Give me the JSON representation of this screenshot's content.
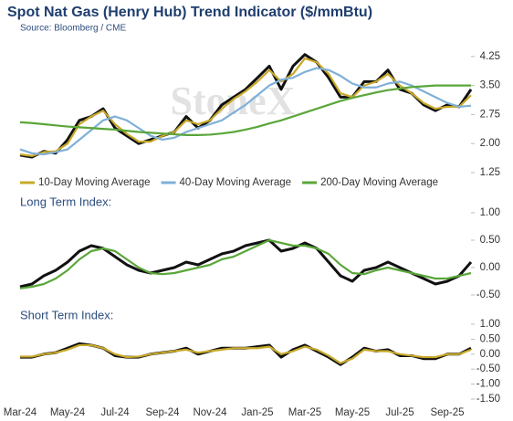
{
  "chart_data": [
    {
      "type": "line",
      "title": "Spot Nat Gas (Henry Hub) Trend Indicator ($/mmBtu)",
      "subtitle": "Source: Bloomberg / CME",
      "watermark": "StoneX",
      "ylim": [
        1.25,
        4.6
      ],
      "yticks": [
        4.25,
        {
          "value": 3.5,
          "label": "3.50"
        },
        2.75,
        {
          "value": 2.0,
          "label": "2.00"
        },
        1.25
      ],
      "series": [
        {
          "color": "#111111",
          "values": [
            1.7,
            1.65,
            1.8,
            1.75,
            2.1,
            2.6,
            2.7,
            2.9,
            2.4,
            2.2,
            2.0,
            2.1,
            2.2,
            2.3,
            2.7,
            2.4,
            2.6,
            3.0,
            3.2,
            3.4,
            3.7,
            4.0,
            3.4,
            4.0,
            4.3,
            4.1,
            3.7,
            3.2,
            3.2,
            3.6,
            3.6,
            3.9,
            3.4,
            3.3,
            3.0,
            2.85,
            3.0,
            2.95,
            3.4
          ]
        },
        {
          "name": "10-Day Moving Average",
          "color": "#c8a92a",
          "values": [
            1.72,
            1.68,
            1.78,
            1.8,
            2.0,
            2.5,
            2.7,
            2.85,
            2.5,
            2.25,
            2.05,
            2.05,
            2.2,
            2.3,
            2.6,
            2.5,
            2.6,
            2.9,
            3.15,
            3.35,
            3.6,
            3.9,
            3.6,
            3.8,
            4.2,
            4.1,
            3.8,
            3.3,
            3.2,
            3.5,
            3.6,
            3.8,
            3.5,
            3.3,
            3.05,
            2.9,
            2.95,
            2.95,
            3.25
          ]
        },
        {
          "name": "40-Day Moving Average",
          "color": "#7fb0d8",
          "values": [
            1.85,
            1.75,
            1.72,
            1.78,
            1.85,
            2.1,
            2.35,
            2.6,
            2.7,
            2.6,
            2.4,
            2.2,
            2.1,
            2.15,
            2.3,
            2.4,
            2.5,
            2.6,
            2.8,
            3.0,
            3.25,
            3.5,
            3.65,
            3.7,
            3.85,
            3.95,
            3.9,
            3.75,
            3.55,
            3.45,
            3.45,
            3.55,
            3.6,
            3.5,
            3.35,
            3.2,
            3.05,
            2.95,
            2.98
          ]
        },
        {
          "name": "200-Day Moving Average",
          "color": "#5aa63a",
          "values": [
            2.55,
            2.53,
            2.5,
            2.47,
            2.44,
            2.42,
            2.4,
            2.38,
            2.36,
            2.33,
            2.3,
            2.28,
            2.26,
            2.24,
            2.22,
            2.22,
            2.23,
            2.26,
            2.3,
            2.36,
            2.43,
            2.52,
            2.6,
            2.7,
            2.8,
            2.9,
            3.0,
            3.1,
            3.18,
            3.25,
            3.32,
            3.38,
            3.42,
            3.46,
            3.48,
            3.5,
            3.5,
            3.5,
            3.5
          ]
        }
      ]
    },
    {
      "type": "line",
      "title": "Long Term Index:",
      "ylim": [
        -0.5,
        1.0
      ],
      "yticks": [
        {
          "value": 1.0,
          "label": "1.00"
        },
        {
          "value": 0.5,
          "label": "0.50"
        },
        {
          "value": 0.0,
          "label": "0.00"
        },
        {
          "value": -0.5,
          "label": "-0.50"
        }
      ],
      "series": [
        {
          "color": "#111111",
          "values": [
            -0.35,
            -0.3,
            -0.15,
            -0.05,
            0.1,
            0.3,
            0.4,
            0.35,
            0.2,
            0.05,
            -0.05,
            -0.1,
            -0.05,
            0.0,
            0.1,
            0.05,
            0.15,
            0.25,
            0.3,
            0.4,
            0.45,
            0.5,
            0.3,
            0.35,
            0.45,
            0.35,
            0.1,
            -0.15,
            -0.25,
            -0.05,
            0.0,
            0.1,
            0.0,
            -0.1,
            -0.2,
            -0.3,
            -0.25,
            -0.15,
            0.1
          ]
        },
        {
          "color": "#5aa63a",
          "values": [
            -0.38,
            -0.35,
            -0.3,
            -0.2,
            -0.05,
            0.15,
            0.3,
            0.35,
            0.3,
            0.15,
            0.0,
            -0.1,
            -0.12,
            -0.1,
            -0.05,
            0.0,
            0.05,
            0.15,
            0.2,
            0.3,
            0.4,
            0.5,
            0.45,
            0.4,
            0.4,
            0.35,
            0.25,
            0.05,
            -0.1,
            -0.12,
            -0.05,
            0.0,
            -0.05,
            -0.1,
            -0.15,
            -0.2,
            -0.2,
            -0.15,
            -0.1
          ]
        }
      ]
    },
    {
      "type": "line",
      "title": "Short Term Index:",
      "ylim": [
        -1.5,
        1.0
      ],
      "yticks": [
        {
          "value": 1.0,
          "label": "1.00"
        },
        {
          "value": 0.5,
          "label": "0.50"
        },
        {
          "value": 0.0,
          "label": "0.00"
        },
        {
          "value": -0.5,
          "label": "-0.50"
        },
        {
          "value": -1.0,
          "label": "-1.00"
        },
        {
          "value": -1.5,
          "label": "-1.50"
        }
      ],
      "categories": [
        "Mar-24",
        null,
        null,
        null,
        "May-24",
        null,
        null,
        null,
        "Jul-24",
        null,
        null,
        null,
        "Sep-24",
        null,
        null,
        null,
        "Nov-24",
        null,
        null,
        null,
        "Jan-25",
        null,
        null,
        null,
        "Mar-25",
        null,
        null,
        null,
        "May-25",
        null,
        null,
        null,
        "Jul-25",
        null,
        null,
        null,
        "Sep-25",
        null,
        null
      ],
      "series": [
        {
          "color": "#111111",
          "values": [
            -0.1,
            -0.1,
            0.0,
            0.05,
            0.2,
            0.35,
            0.3,
            0.2,
            -0.05,
            -0.1,
            -0.1,
            0.0,
            0.05,
            0.1,
            0.2,
            0.0,
            0.1,
            0.2,
            0.2,
            0.2,
            0.25,
            0.3,
            -0.1,
            0.15,
            0.3,
            0.1,
            -0.1,
            -0.35,
            -0.1,
            0.2,
            0.1,
            0.15,
            -0.05,
            -0.05,
            -0.15,
            -0.15,
            0.0,
            0.0,
            0.2
          ]
        },
        {
          "color": "#c8a92a",
          "values": [
            -0.08,
            -0.08,
            0.0,
            0.05,
            0.15,
            0.3,
            0.3,
            0.2,
            0.0,
            -0.1,
            -0.08,
            0.0,
            0.05,
            0.1,
            0.15,
            0.05,
            0.1,
            0.15,
            0.2,
            0.2,
            0.2,
            0.25,
            0.0,
            0.1,
            0.25,
            0.15,
            -0.05,
            -0.3,
            -0.15,
            0.15,
            0.1,
            0.1,
            0.0,
            -0.05,
            -0.1,
            -0.1,
            0.0,
            0.0,
            0.15
          ]
        }
      ]
    }
  ]
}
